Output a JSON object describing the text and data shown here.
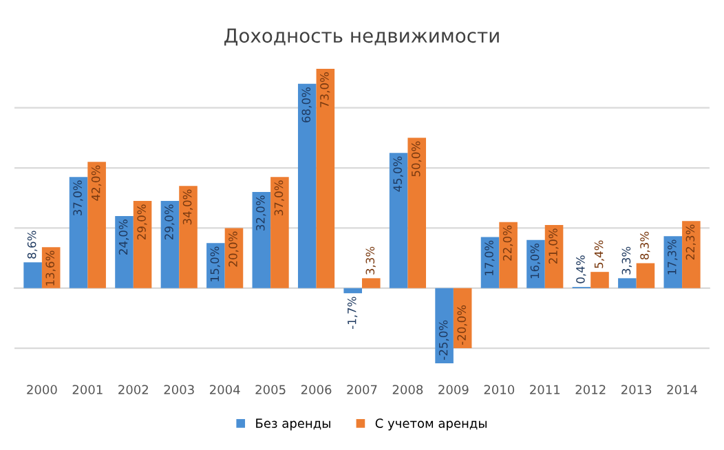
{
  "chart_data": {
    "type": "bar",
    "title": "Доходность недвижимости",
    "categories": [
      "2000",
      "2001",
      "2002",
      "2003",
      "2004",
      "2005",
      "2006",
      "2007",
      "2008",
      "2009",
      "2010",
      "2011",
      "2012",
      "2013",
      "2014"
    ],
    "series": [
      {
        "name": "Без аренды",
        "color": "#4a8fd4",
        "values": [
          8.6,
          37,
          24,
          29,
          15,
          32,
          68,
          -1.7,
          45,
          -25,
          17,
          16,
          0.4,
          3.3,
          17.3
        ],
        "value_labels": [
          "8,6%",
          "37,0%",
          "24,0%",
          "29,0%",
          "15,0%",
          "32,0%",
          "68,0%",
          "-1,7%",
          "45,0%",
          "-25,0%",
          "17,0%",
          "16,0%",
          "0,4%",
          "3,3%",
          "17,3%"
        ]
      },
      {
        "name": "С учетом аренды",
        "color": "#ed7d31",
        "values": [
          13.6,
          42,
          29,
          34,
          20,
          37,
          73,
          3.3,
          50,
          -20,
          22,
          21,
          5.4,
          8.3,
          22.3
        ],
        "value_labels": [
          "13,6%",
          "42,0%",
          "29,0%",
          "34,0%",
          "20,0%",
          "37,0%",
          "73,0%",
          "3,3%",
          "50,0%",
          "-20,0%",
          "22,0%",
          "21,0%",
          "5,4%",
          "8,3%",
          "22,3%"
        ]
      }
    ],
    "yticks": [
      {
        "value": -20,
        "label": null
      },
      {
        "value": 0,
        "label": null
      },
      {
        "value": 20,
        "label": null
      },
      {
        "value": 40,
        "label": null
      },
      {
        "value": 60,
        "label": null
      }
    ],
    "grid": "y",
    "legend": "bottom",
    "tick_labels": "x"
  }
}
